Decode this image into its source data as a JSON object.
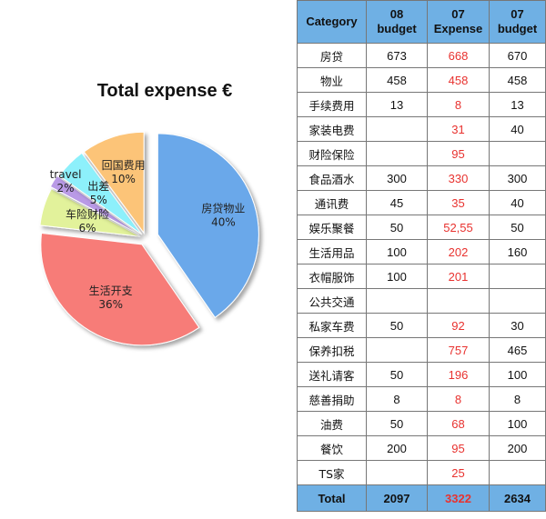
{
  "chart_data": {
    "type": "pie",
    "title": "Total expense €",
    "slices": [
      {
        "label": "房贷物业",
        "value": 40,
        "pct": "40%",
        "color": "#6aa8ea"
      },
      {
        "label": "生活开支",
        "value": 36,
        "pct": "36%",
        "color": "#f77b78"
      },
      {
        "label": "车险财险",
        "value": 6,
        "pct": "6%",
        "color": "#e2f29b"
      },
      {
        "label": "travel",
        "value": 2,
        "pct": "2%",
        "color": "#b99ae6"
      },
      {
        "label": "出差",
        "value": 5,
        "pct": "5%",
        "color": "#8df0fb"
      },
      {
        "label": "回国费用",
        "value": 10,
        "pct": "10%",
        "color": "#fcc478"
      }
    ]
  },
  "table": {
    "headers": [
      "Category",
      "08\nbudget",
      "07\nExpense",
      "07\nbudget"
    ],
    "rows": [
      [
        "房贷",
        "673",
        "668",
        "670"
      ],
      [
        "物业",
        "458",
        "458",
        "458"
      ],
      [
        "手续费用",
        "13",
        "8",
        "13"
      ],
      [
        "家装电费",
        "",
        "31",
        "40"
      ],
      [
        "财险保险",
        "",
        "95",
        ""
      ],
      [
        "食品酒水",
        "300",
        "330",
        "300"
      ],
      [
        "通讯费",
        "45",
        "35",
        "40"
      ],
      [
        "娱乐聚餐",
        "50",
        "52,55",
        "50"
      ],
      [
        "生活用品",
        "100",
        "202",
        "160"
      ],
      [
        "衣帽服饰",
        "100",
        "201",
        ""
      ],
      [
        "公共交通",
        "",
        "",
        ""
      ],
      [
        "私家车费",
        "50",
        "92",
        "30"
      ],
      [
        "保养扣税",
        "",
        "757",
        "465"
      ],
      [
        "送礼请客",
        "50",
        "196",
        "100"
      ],
      [
        "慈善捐助",
        "8",
        "8",
        "8"
      ],
      [
        "油费",
        "50",
        "68",
        "100"
      ],
      [
        "餐饮",
        "200",
        "95",
        "200"
      ],
      [
        "TS家",
        "",
        "25",
        ""
      ]
    ],
    "total": [
      "Total",
      "2097",
      "3322",
      "2634"
    ]
  }
}
